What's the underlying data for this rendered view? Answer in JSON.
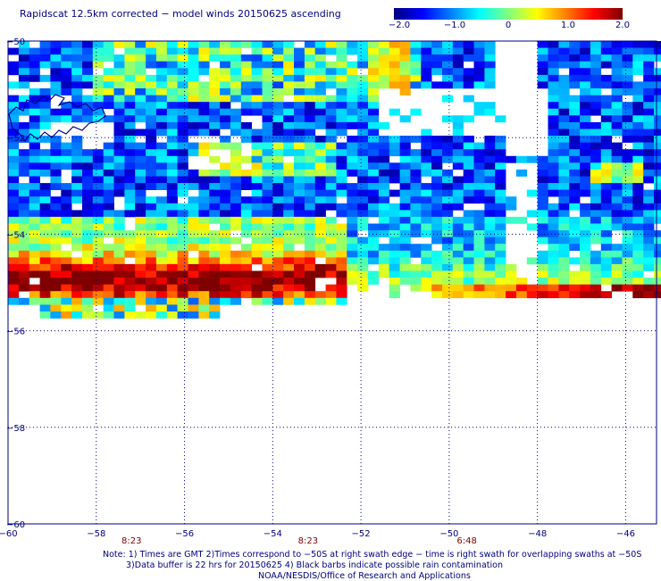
{
  "title": "Rapidscat 12.5km corrected − model winds 20150625 ascending",
  "colorbar": {
    "ticks": [
      "−2.0",
      "−1.0",
      "0",
      "1.0",
      "2.0"
    ],
    "min": -2.0,
    "max": 2.0,
    "colors": [
      "#00007f",
      "#0000ff",
      "#0080ff",
      "#00ffff",
      "#80ff80",
      "#ffff00",
      "#ff8000",
      "#ff0000",
      "#7f0000"
    ]
  },
  "chart_data": {
    "type": "heatmap",
    "title": "Rapidscat 12.5km corrected − model winds 20150625 ascending",
    "x_ticks": [
      "−60",
      "−58",
      "−56",
      "−54",
      "−52",
      "−50",
      "−48",
      "−46"
    ],
    "y_ticks": [
      "−50",
      "−52",
      "−54",
      "−56",
      "−58",
      "−60"
    ],
    "xlim": [
      -60,
      -45.3
    ],
    "ylim": [
      -60,
      -50
    ],
    "grid": true,
    "value_range": [
      -2.0,
      2.0
    ],
    "time_labels": [
      {
        "text": "8:23",
        "x": -57.2
      },
      {
        "text": "8:23",
        "x": -53.2
      },
      {
        "text": "6:48",
        "x": -49.6
      }
    ]
  },
  "notes": [
    "Note: 1) Times are GMT 2)Times correspond to −50S at right swath edge − time is right swath for overlapping swaths at −50S",
    "3)Data buffer is 22 hrs for 20150625 4) Black barbs indicate possible rain contamination",
    "NOAA/NESDIS/Office of Research and Applications"
  ]
}
